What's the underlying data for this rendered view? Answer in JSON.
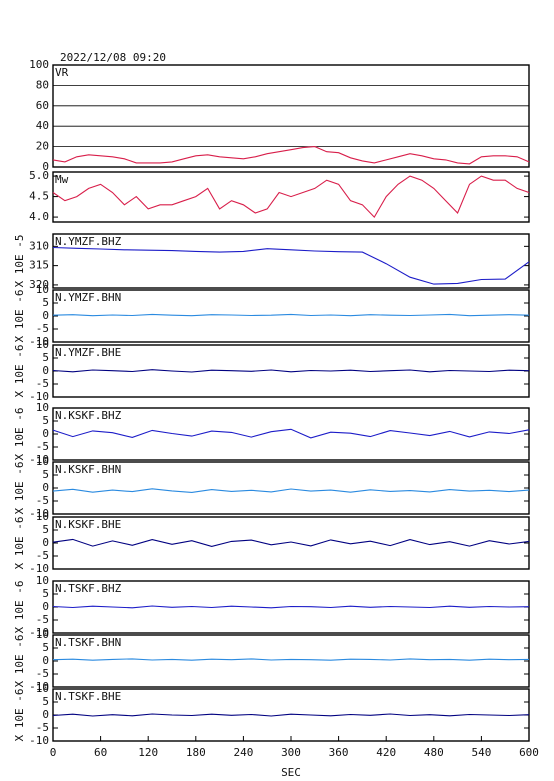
{
  "chart_data": [
    {
      "type": "line",
      "title": "2022/12/08 09:20",
      "xlim": [
        0,
        600
      ],
      "ylim": [
        0,
        100
      ],
      "yticks": [
        0,
        20,
        40,
        60,
        80,
        100
      ],
      "grid": true,
      "x": [
        0,
        15,
        30,
        45,
        60,
        75,
        90,
        105,
        120,
        135,
        150,
        165,
        180,
        195,
        210,
        225,
        240,
        255,
        270,
        285,
        300,
        315,
        330,
        345,
        360,
        375,
        390,
        405,
        420,
        435,
        450,
        465,
        480,
        495,
        510,
        525,
        540,
        555,
        570,
        585,
        600
      ],
      "series": [
        {
          "name": "VR",
          "color": "#d81e4a",
          "values": [
            7,
            5,
            10,
            12,
            11,
            10,
            8,
            4,
            4,
            4,
            5,
            8,
            11,
            12,
            10,
            9,
            8,
            10,
            13,
            15,
            17,
            19,
            20,
            15,
            14,
            9,
            6,
            4,
            7,
            10,
            13,
            11,
            8,
            7,
            4,
            3,
            10,
            11,
            11,
            10,
            5
          ]
        }
      ]
    },
    {
      "type": "line",
      "xlim": [
        0,
        600
      ],
      "ylim": [
        3.88,
        5.1
      ],
      "yticks": [
        {
          "value": 4,
          "label": "4.0"
        },
        4.5,
        {
          "value": 5,
          "label": "5.0"
        }
      ],
      "x": [
        0,
        15,
        30,
        45,
        60,
        75,
        90,
        105,
        120,
        135,
        150,
        165,
        180,
        195,
        210,
        225,
        240,
        255,
        270,
        285,
        300,
        315,
        330,
        345,
        360,
        375,
        390,
        405,
        420,
        435,
        450,
        465,
        480,
        495,
        510,
        525,
        540,
        555,
        570,
        585,
        600
      ],
      "series": [
        {
          "name": "Mw",
          "color": "#d81e4a",
          "values": [
            4.6,
            4.4,
            4.5,
            4.7,
            4.8,
            4.6,
            4.3,
            4.5,
            4.2,
            4.3,
            4.3,
            4.4,
            4.5,
            4.7,
            4.2,
            4.4,
            4.3,
            4.1,
            4.2,
            4.6,
            4.5,
            4.6,
            4.7,
            4.9,
            4.8,
            4.4,
            4.3,
            4.0,
            4.5,
            4.8,
            5.0,
            4.9,
            4.7,
            4.4,
            4.1,
            4.8,
            5.0,
            4.9,
            4.9,
            4.7,
            4.6
          ]
        }
      ]
    },
    {
      "type": "line",
      "xlim": [
        0,
        600
      ],
      "ylim": [
        306.8,
        320.8
      ],
      "y_inverted": true,
      "yticks": [
        310,
        315,
        320
      ],
      "ylabel": "X 10E -5",
      "x": [
        0,
        30,
        60,
        90,
        120,
        150,
        180,
        210,
        240,
        270,
        300,
        330,
        360,
        390,
        420,
        450,
        480,
        510,
        540,
        570,
        600
      ],
      "series": [
        {
          "name": "N.YMZF.BHZ",
          "color": "#1c1cc8",
          "values": [
            310.3,
            310.5,
            310.7,
            310.9,
            311.0,
            311.1,
            311.3,
            311.5,
            311.3,
            310.6,
            310.9,
            311.2,
            311.4,
            311.5,
            314.5,
            318.0,
            319.8,
            319.6,
            318.6,
            318.5,
            314.0
          ]
        }
      ]
    },
    {
      "type": "line",
      "xlim": [
        0,
        600
      ],
      "ylim": [
        -10,
        10
      ],
      "yticks": [
        -10,
        -5,
        0,
        5,
        10
      ],
      "ylabel": "X 10E -6",
      "x": [
        0,
        25,
        50,
        75,
        100,
        125,
        150,
        175,
        200,
        225,
        250,
        275,
        300,
        325,
        350,
        375,
        400,
        425,
        450,
        475,
        500,
        525,
        550,
        575,
        600
      ],
      "series": [
        {
          "name": "N.YMZF.BHN",
          "color": "#2a8ae0",
          "values": [
            0.3,
            0.5,
            0.1,
            0.4,
            0.2,
            0.6,
            0.3,
            0.1,
            0.5,
            0.4,
            0.2,
            0.3,
            0.6,
            0.2,
            0.4,
            0.1,
            0.5,
            0.3,
            0.2,
            0.4,
            0.6,
            0.1,
            0.3,
            0.5,
            0.3
          ]
        }
      ]
    },
    {
      "type": "line",
      "xlim": [
        0,
        600
      ],
      "ylim": [
        -10,
        10
      ],
      "yticks": [
        -10,
        -5,
        0,
        5,
        10
      ],
      "ylabel": "X 10E -6",
      "x": [
        0,
        25,
        50,
        75,
        100,
        125,
        150,
        175,
        200,
        225,
        250,
        275,
        300,
        325,
        350,
        375,
        400,
        425,
        450,
        475,
        500,
        525,
        550,
        575,
        600
      ],
      "series": [
        {
          "name": "N.YMZF.BHE",
          "color": "#000080",
          "values": [
            0.2,
            -0.3,
            0.4,
            0.1,
            -0.2,
            0.5,
            0,
            -0.4,
            0.3,
            0.1,
            -0.1,
            0.4,
            -0.3,
            0.2,
            0,
            0.3,
            -0.2,
            0.1,
            0.4,
            -0.3,
            0.2,
            0,
            -0.2,
            0.3,
            0.1
          ]
        }
      ]
    },
    {
      "type": "line",
      "xlim": [
        0,
        600
      ],
      "ylim": [
        -10,
        10
      ],
      "yticks": [
        -10,
        -5,
        0,
        5,
        10
      ],
      "ylabel": "X 10E -6",
      "x": [
        0,
        25,
        50,
        75,
        100,
        125,
        150,
        175,
        200,
        225,
        250,
        275,
        300,
        325,
        350,
        375,
        400,
        425,
        450,
        475,
        500,
        525,
        550,
        575,
        600
      ],
      "series": [
        {
          "name": "N.KSKF.BHZ",
          "color": "#1c1cc8",
          "values": [
            1.5,
            -1,
            1.2,
            0.5,
            -1.3,
            1.4,
            0.2,
            -0.8,
            1.1,
            0.6,
            -1.2,
            0.9,
            1.8,
            -1.5,
            0.7,
            0.3,
            -1,
            1.3,
            0.4,
            -0.6,
            1.0,
            -1.1,
            0.8,
            0.2,
            1.6
          ]
        }
      ]
    },
    {
      "type": "line",
      "xlim": [
        0,
        600
      ],
      "ylim": [
        -10,
        10
      ],
      "yticks": [
        -10,
        -5,
        0,
        5,
        10
      ],
      "ylabel": "X 10E -6",
      "x": [
        0,
        25,
        50,
        75,
        100,
        125,
        150,
        175,
        200,
        225,
        250,
        275,
        300,
        325,
        350,
        375,
        400,
        425,
        450,
        475,
        500,
        525,
        550,
        575,
        600
      ],
      "series": [
        {
          "name": "N.KSKF.BHN",
          "color": "#2a8ae0",
          "values": [
            -1.2,
            -0.5,
            -1.6,
            -0.8,
            -1.4,
            -0.3,
            -1.1,
            -1.7,
            -0.6,
            -1.3,
            -0.9,
            -1.5,
            -0.4,
            -1.2,
            -0.8,
            -1.6,
            -0.7,
            -1.3,
            -1.0,
            -1.5,
            -0.6,
            -1.2,
            -0.9,
            -1.4,
            -0.8
          ]
        }
      ]
    },
    {
      "type": "line",
      "xlim": [
        0,
        600
      ],
      "ylim": [
        -10,
        10
      ],
      "yticks": [
        -10,
        -5,
        0,
        5,
        10
      ],
      "ylabel": "X 10E -6",
      "x": [
        0,
        25,
        50,
        75,
        100,
        125,
        150,
        175,
        200,
        225,
        250,
        275,
        300,
        325,
        350,
        375,
        400,
        425,
        450,
        475,
        500,
        525,
        550,
        575,
        600
      ],
      "series": [
        {
          "name": "N.KSKF.BHE",
          "color": "#000080",
          "values": [
            0.3,
            1.4,
            -1.2,
            0.8,
            -0.9,
            1.3,
            -0.5,
            0.9,
            -1.3,
            0.6,
            1.1,
            -0.7,
            0.4,
            -1.1,
            1.2,
            -0.3,
            0.7,
            -1.0,
            1.3,
            -0.6,
            0.5,
            -1.2,
            0.9,
            -0.4,
            0.6
          ]
        }
      ]
    },
    {
      "type": "line",
      "xlim": [
        0,
        600
      ],
      "ylim": [
        -10,
        10
      ],
      "yticks": [
        -10,
        -5,
        0,
        5,
        10
      ],
      "ylabel": "X 10E -6",
      "x": [
        0,
        25,
        50,
        75,
        100,
        125,
        150,
        175,
        200,
        225,
        250,
        275,
        300,
        325,
        350,
        375,
        400,
        425,
        450,
        475,
        500,
        525,
        550,
        575,
        600
      ],
      "series": [
        {
          "name": "N.TSKF.BHZ",
          "color": "#1c1cc8",
          "values": [
            0.2,
            -0.2,
            0.3,
            0,
            -0.3,
            0.4,
            -0.1,
            0.2,
            -0.2,
            0.3,
            0,
            -0.3,
            0.2,
            0.1,
            -0.2,
            0.3,
            -0.1,
            0.2,
            0,
            -0.2,
            0.3,
            -0.1,
            0.2,
            0,
            0.1
          ]
        }
      ]
    },
    {
      "type": "line",
      "xlim": [
        0,
        600
      ],
      "ylim": [
        -10,
        10
      ],
      "yticks": [
        -10,
        -5,
        0,
        5,
        10
      ],
      "ylabel": "X 10E -6",
      "x": [
        0,
        25,
        50,
        75,
        100,
        125,
        150,
        175,
        200,
        225,
        250,
        275,
        300,
        325,
        350,
        375,
        400,
        425,
        450,
        475,
        500,
        525,
        550,
        575,
        600
      ],
      "series": [
        {
          "name": "N.TSKF.BHN",
          "color": "#2a8ae0",
          "values": [
            0.5,
            0.7,
            0.3,
            0.6,
            0.8,
            0.4,
            0.6,
            0.3,
            0.7,
            0.5,
            0.8,
            0.4,
            0.6,
            0.5,
            0.3,
            0.7,
            0.6,
            0.4,
            0.8,
            0.5,
            0.6,
            0.3,
            0.7,
            0.5,
            0.6
          ]
        }
      ]
    },
    {
      "type": "line",
      "xlim": [
        0,
        600
      ],
      "ylim": [
        -10,
        10
      ],
      "yticks": [
        -10,
        -5,
        0,
        5,
        10
      ],
      "ylabel": "X 10E -6",
      "xticks": [
        0,
        60,
        120,
        180,
        240,
        300,
        360,
        420,
        480,
        540,
        600
      ],
      "xlabel": "SEC",
      "x": [
        0,
        25,
        50,
        75,
        100,
        125,
        150,
        175,
        200,
        225,
        250,
        275,
        300,
        325,
        350,
        375,
        400,
        425,
        450,
        475,
        500,
        525,
        550,
        575,
        600
      ],
      "series": [
        {
          "name": "N.TSKF.BHE",
          "color": "#000080",
          "values": [
            -0.2,
            0.3,
            -0.4,
            0.1,
            -0.3,
            0.4,
            0,
            -0.2,
            0.3,
            -0.1,
            0.2,
            -0.4,
            0.3,
            0,
            -0.3,
            0.2,
            -0.1,
            0.4,
            -0.2,
            0.1,
            -0.3,
            0.2,
            0,
            -0.2,
            0.1
          ]
        }
      ]
    }
  ]
}
